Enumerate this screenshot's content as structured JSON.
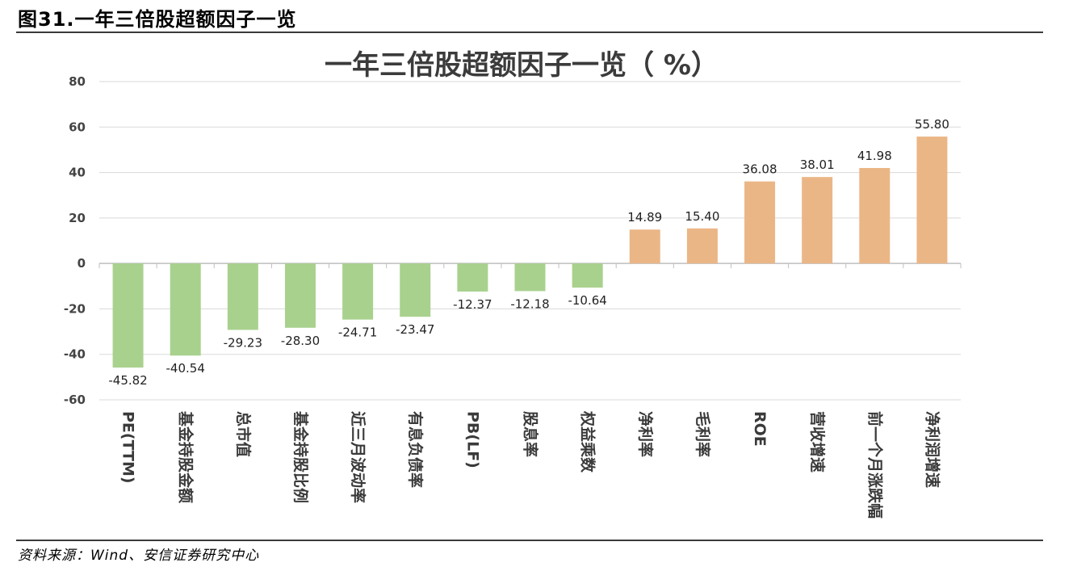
{
  "header": {
    "figure_title": "图31.一年三倍股超额因子一览",
    "source": "资料来源：Wind、安信证券研究中心"
  },
  "colors": {
    "negative": "#A9D18E",
    "positive": "#EBB686",
    "grid": "#D9D9D9",
    "axis": "#BFBFBF"
  },
  "chart_data": {
    "type": "bar",
    "title": "一年三倍股超额因子一览（ %）",
    "xlabel": "",
    "ylabel": "",
    "ylim": [
      -60,
      80
    ],
    "yticks": [
      80,
      60,
      40,
      20,
      0,
      -20,
      -40,
      -60
    ],
    "grid": true,
    "categories": [
      "PE(TTM)",
      "基金持股金额",
      "总市值",
      "基金持股比例",
      "近三月波动率",
      "有息负债率",
      "PB(LF)",
      "股息率",
      "权益乘数",
      "净利率",
      "毛利率",
      "ROE",
      "营收增速",
      "前一个月涨跌幅",
      "净利润增速"
    ],
    "values": [
      -45.82,
      -40.54,
      -29.23,
      -28.3,
      -24.71,
      -23.47,
      -12.37,
      -12.18,
      -10.64,
      14.89,
      15.4,
      36.08,
      38.01,
      41.98,
      55.8
    ],
    "value_labels": [
      "-45.82",
      "-40.54",
      "-29.23",
      "-28.30",
      "-24.71",
      "-23.47",
      "-12.37",
      "-12.18",
      "-10.64",
      "14.89",
      "15.40",
      "36.08",
      "38.01",
      "41.98",
      "55.80"
    ]
  }
}
